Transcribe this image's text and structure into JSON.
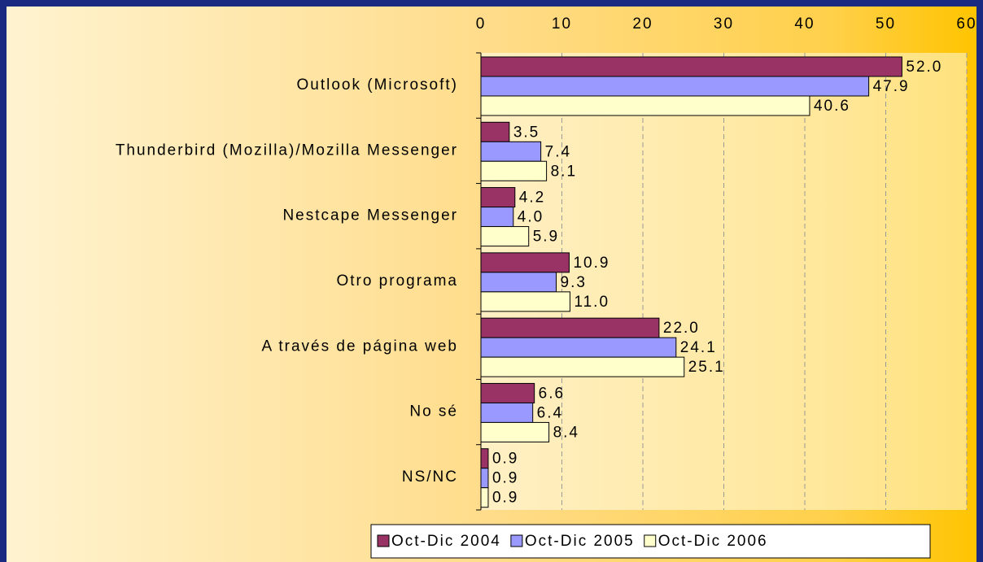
{
  "chart_data": {
    "type": "barh",
    "categories": [
      "Outlook (Microsoft)",
      "Thunderbird (Mozilla)/Mozilla Messenger",
      "Nestcape Messenger",
      "Otro programa",
      "A través de página web",
      "No sé",
      "NS/NC"
    ],
    "series": [
      {
        "name": "Oct-Dic 2004",
        "color": "#993366",
        "values": [
          52.0,
          3.5,
          4.2,
          10.9,
          22.0,
          6.6,
          0.9
        ],
        "value_labels": [
          "52.0",
          "3.5",
          "4.2",
          "10.9",
          "22.0",
          "6.6",
          "0.9"
        ]
      },
      {
        "name": "Oct-Dic 2005",
        "color": "#9999ff",
        "values": [
          47.9,
          7.4,
          4.0,
          9.3,
          24.1,
          6.4,
          0.9
        ],
        "value_labels": [
          "47.9",
          "7.4",
          "4.0",
          "9.3",
          "24.1",
          "6.4",
          "0.9"
        ]
      },
      {
        "name": "Oct-Dic 2006",
        "color": "#ffffcc",
        "values": [
          40.6,
          8.1,
          5.9,
          11.0,
          25.1,
          8.4,
          0.9
        ],
        "value_labels": [
          "40.6",
          "8.1",
          "5.9",
          "11.0",
          "25.1",
          "8.4",
          "0.9"
        ]
      }
    ],
    "xlim": [
      0,
      60
    ],
    "xticks": [
      0,
      10,
      20,
      30,
      40,
      50,
      60
    ],
    "grid": true,
    "legend": "bottom"
  }
}
